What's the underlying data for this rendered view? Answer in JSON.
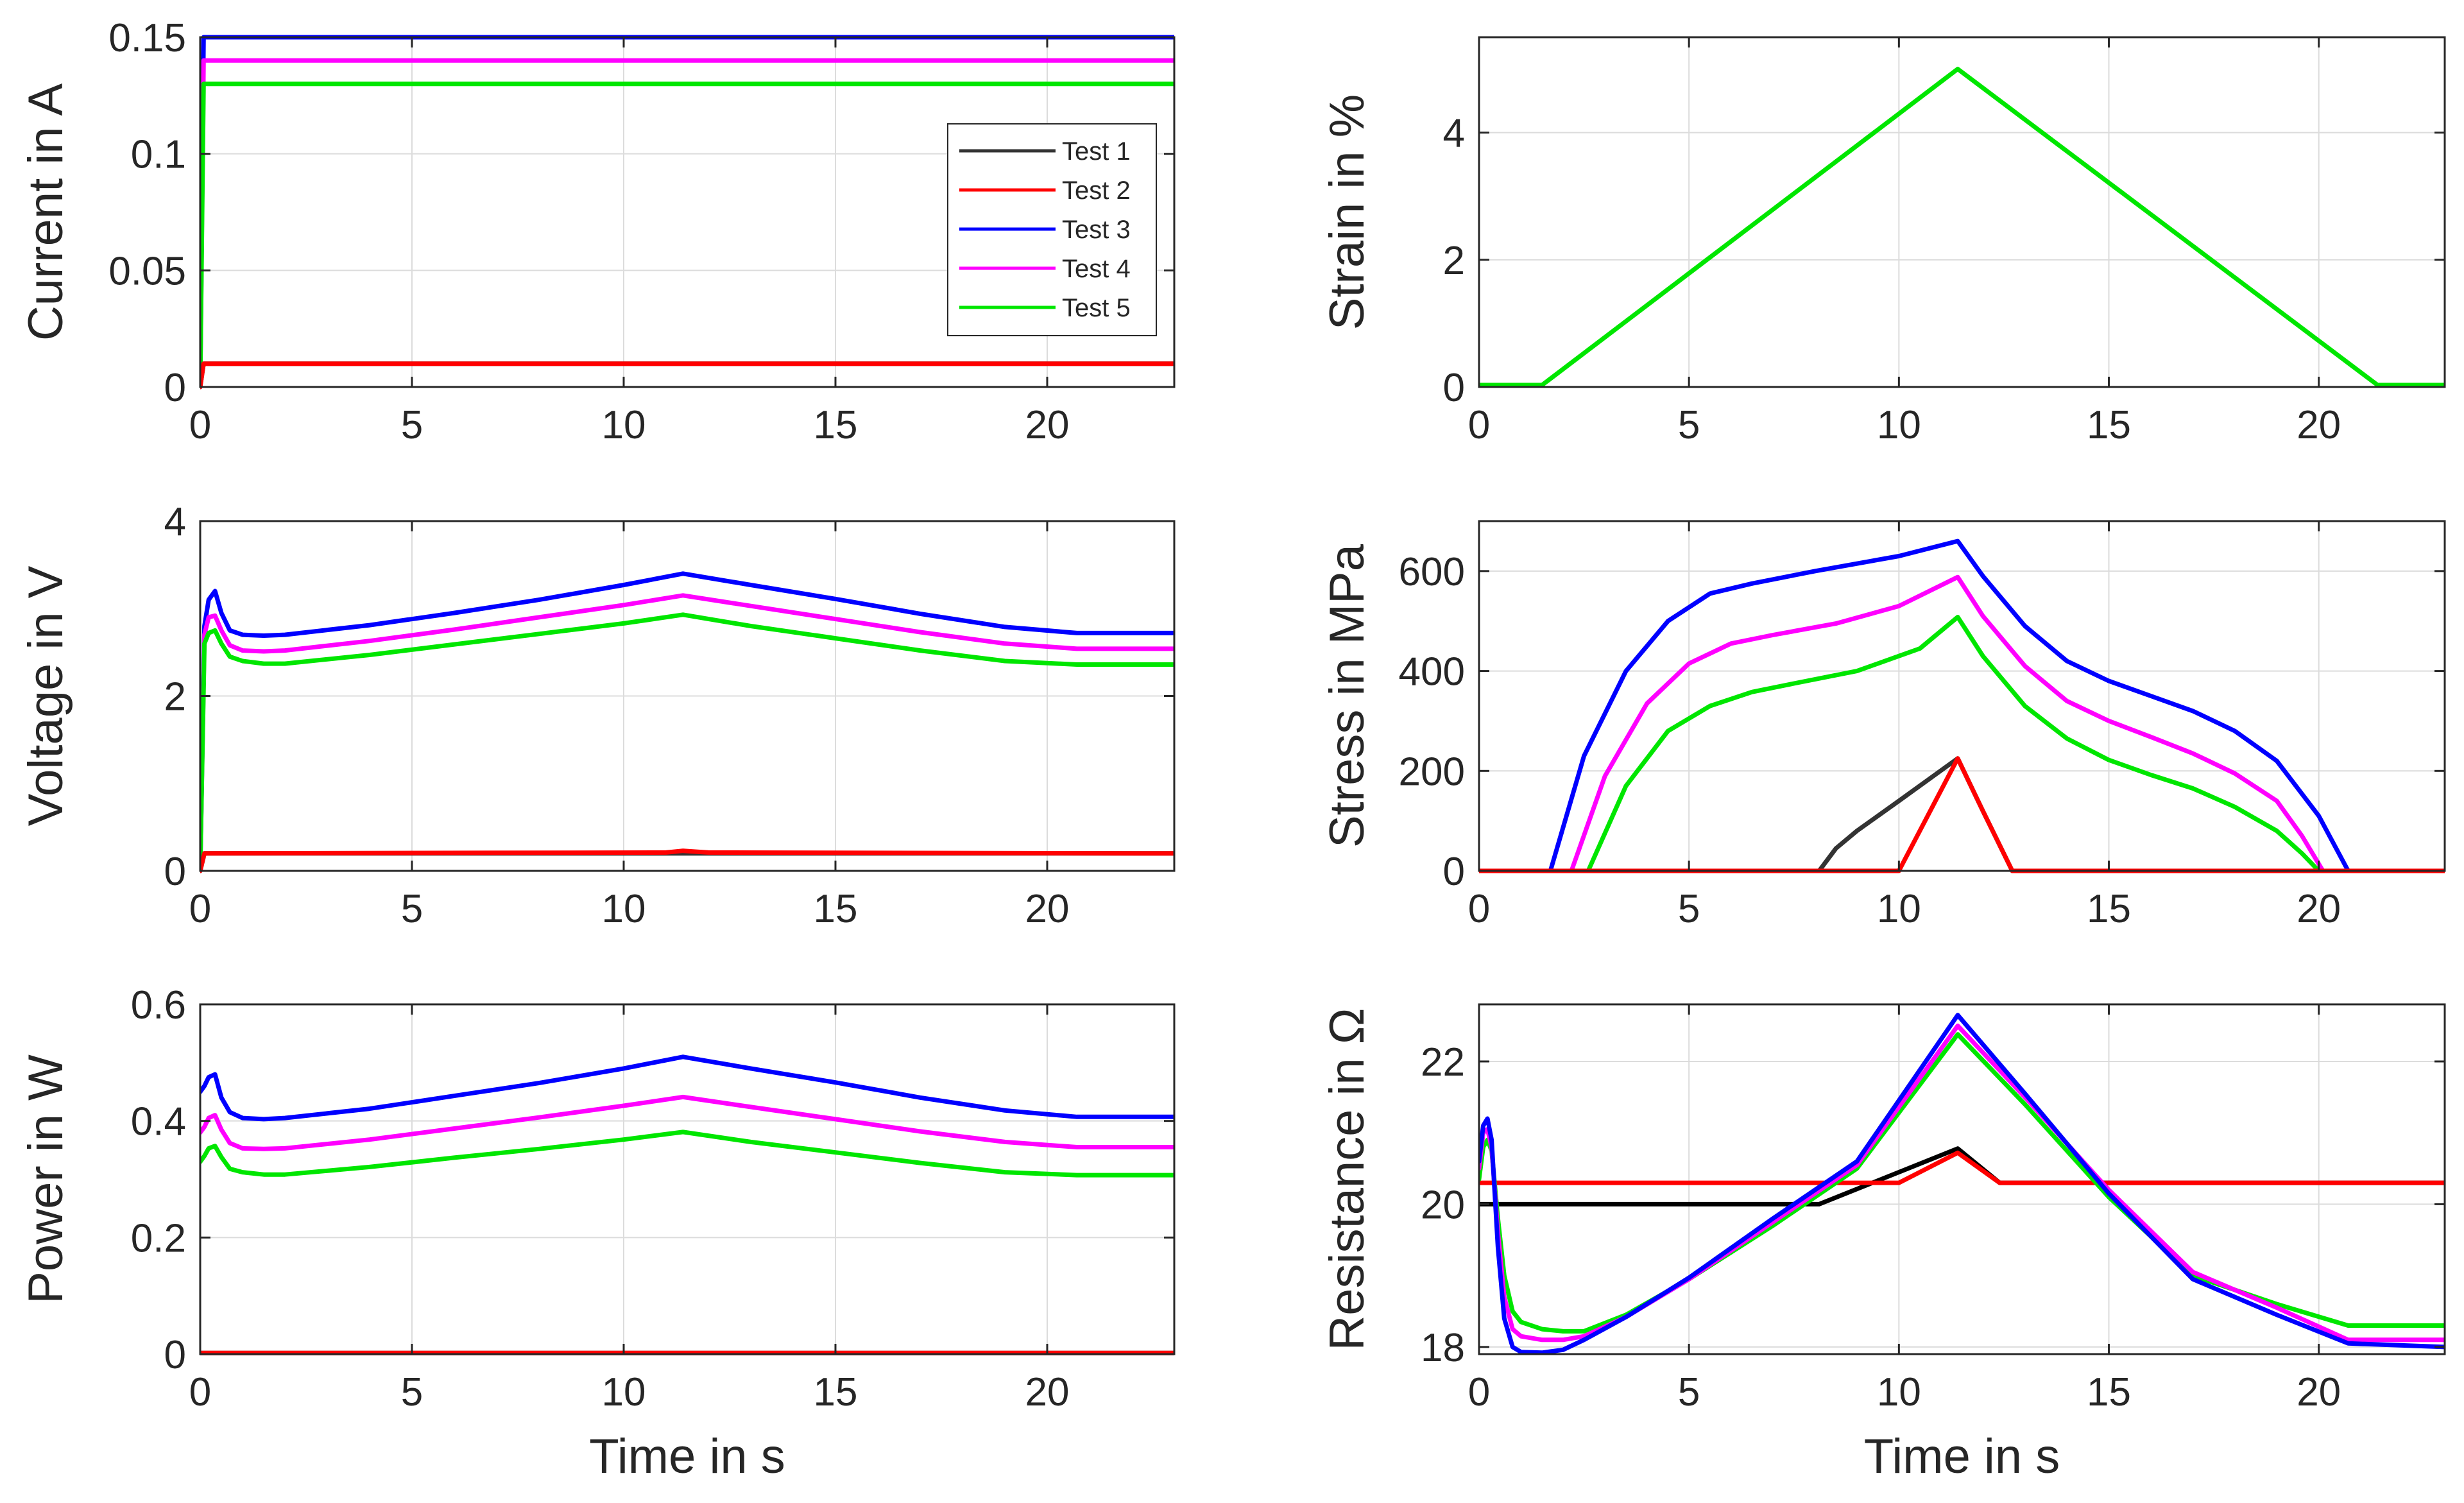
{
  "chart_data": [
    {
      "id": "current",
      "type": "line",
      "xlabel": "",
      "ylabel": "Current in A",
      "xlim": [
        0,
        23
      ],
      "ylim": [
        0,
        0.15
      ],
      "xticks": [
        0,
        5,
        10,
        15,
        20
      ],
      "xtick_labels": [
        "0",
        "5",
        "10",
        "15",
        "20"
      ],
      "yticks": [
        0,
        0.05,
        0.1,
        0.15
      ],
      "ytick_labels": [
        "0",
        "0.05",
        "0.1",
        "0.15"
      ],
      "series": [
        {
          "name": "Test 1",
          "color": "#333333",
          "x": [
            0,
            0.08,
            23
          ],
          "y": [
            0,
            0.01,
            0.01
          ]
        },
        {
          "name": "Test 3",
          "color": "#0000ff",
          "x": [
            0,
            0.08,
            23
          ],
          "y": [
            0,
            0.15,
            0.15
          ]
        },
        {
          "name": "Test 4",
          "color": "#ff00ff",
          "x": [
            0,
            0.08,
            23
          ],
          "y": [
            0,
            0.14,
            0.14
          ]
        },
        {
          "name": "Test 5",
          "color": "#00e600",
          "x": [
            0,
            0.08,
            23
          ],
          "y": [
            0,
            0.13,
            0.13
          ]
        },
        {
          "name": "Test 2",
          "color": "#ff0000",
          "x": [
            0,
            0.08,
            23
          ],
          "y": [
            0,
            0.01,
            0.01
          ]
        }
      ],
      "legend": {
        "position": "right",
        "entries": [
          {
            "label": "Test 1",
            "color": "#333333"
          },
          {
            "label": "Test 2",
            "color": "#ff0000"
          },
          {
            "label": "Test 3",
            "color": "#0000ff"
          },
          {
            "label": "Test 4",
            "color": "#ff00ff"
          },
          {
            "label": "Test 5",
            "color": "#00e600"
          }
        ]
      }
    },
    {
      "id": "strain",
      "type": "line",
      "xlabel": "",
      "ylabel": "Strain in %",
      "xlim": [
        0,
        23
      ],
      "ylim": [
        0,
        5.5
      ],
      "xticks": [
        0,
        5,
        10,
        15,
        20
      ],
      "xtick_labels": [
        "0",
        "5",
        "10",
        "15",
        "20"
      ],
      "yticks": [
        0,
        2,
        4
      ],
      "ytick_labels": [
        "0",
        "2",
        "4"
      ],
      "series": [
        {
          "name": "Test 5",
          "color": "#00e600",
          "x": [
            0,
            1.5,
            11.4,
            21.4,
            23
          ],
          "y": [
            0.03,
            0.03,
            5.0,
            0.03,
            0.03
          ]
        }
      ]
    },
    {
      "id": "voltage",
      "type": "line",
      "xlabel": "",
      "ylabel": "Voltage in V",
      "xlim": [
        0,
        23
      ],
      "ylim": [
        0,
        4
      ],
      "xticks": [
        0,
        5,
        10,
        15,
        20
      ],
      "xtick_labels": [
        "0",
        "5",
        "10",
        "15",
        "20"
      ],
      "yticks": [
        0,
        2,
        4
      ],
      "ytick_labels": [
        "0",
        "2",
        "4"
      ],
      "series": [
        {
          "name": "Test 3",
          "color": "#0000ff",
          "x": [
            0,
            0.1,
            0.2,
            0.35,
            0.5,
            0.7,
            1.0,
            1.5,
            2.0,
            4,
            6,
            8,
            10,
            11.4,
            13,
            15,
            17,
            19,
            20.7,
            23
          ],
          "y": [
            0,
            2.8,
            3.1,
            3.2,
            2.95,
            2.75,
            2.7,
            2.69,
            2.7,
            2.81,
            2.95,
            3.1,
            3.27,
            3.4,
            3.27,
            3.11,
            2.94,
            2.79,
            2.72,
            2.72
          ]
        },
        {
          "name": "Test 4",
          "color": "#ff00ff",
          "x": [
            0,
            0.1,
            0.2,
            0.35,
            0.5,
            0.7,
            1.0,
            1.5,
            2.0,
            4,
            6,
            8,
            10,
            11.4,
            13,
            15,
            17,
            19,
            20.7,
            23
          ],
          "y": [
            0,
            2.7,
            2.9,
            2.92,
            2.75,
            2.58,
            2.52,
            2.51,
            2.52,
            2.63,
            2.76,
            2.9,
            3.04,
            3.15,
            3.03,
            2.88,
            2.73,
            2.6,
            2.54,
            2.54
          ]
        },
        {
          "name": "Test 5",
          "color": "#00e600",
          "x": [
            0,
            0.1,
            0.2,
            0.35,
            0.5,
            0.7,
            1.0,
            1.5,
            2.0,
            4,
            6,
            8,
            10,
            11.4,
            13,
            15,
            17,
            19,
            20.7,
            23
          ],
          "y": [
            0,
            2.6,
            2.72,
            2.75,
            2.6,
            2.45,
            2.4,
            2.37,
            2.37,
            2.47,
            2.59,
            2.71,
            2.83,
            2.93,
            2.8,
            2.66,
            2.52,
            2.4,
            2.36,
            2.36
          ]
        },
        {
          "name": "Test 1",
          "color": "#333333",
          "x": [
            0,
            0.1,
            23
          ],
          "y": [
            0,
            0.2,
            0.2
          ]
        },
        {
          "name": "Test 2",
          "color": "#ff0000",
          "x": [
            0,
            0.1,
            11,
            11.4,
            12,
            23
          ],
          "y": [
            0,
            0.2,
            0.21,
            0.23,
            0.21,
            0.2
          ]
        }
      ]
    },
    {
      "id": "stress",
      "type": "line",
      "xlabel": "",
      "ylabel": "Stress in MPa",
      "xlim": [
        0,
        23
      ],
      "ylim": [
        0,
        700
      ],
      "xticks": [
        0,
        5,
        10,
        15,
        20
      ],
      "xtick_labels": [
        "0",
        "5",
        "10",
        "15",
        "20"
      ],
      "yticks": [
        0,
        200,
        400,
        600
      ],
      "ytick_labels": [
        "0",
        "200",
        "400",
        "600"
      ],
      "series": [
        {
          "name": "Test 3",
          "color": "#0000ff",
          "x": [
            0,
            1.7,
            2.5,
            3.5,
            4.5,
            5.5,
            6.5,
            8,
            10,
            11.4,
            12,
            13,
            14,
            15,
            16,
            17,
            18,
            19,
            20,
            20.7,
            23
          ],
          "y": [
            0,
            0,
            230,
            400,
            500,
            555,
            575,
            600,
            630,
            660,
            590,
            490,
            420,
            380,
            350,
            320,
            280,
            220,
            110,
            0,
            0
          ]
        },
        {
          "name": "Test 4",
          "color": "#ff00ff",
          "x": [
            0,
            2.2,
            3,
            4,
            5,
            6,
            7,
            8.5,
            10,
            11.4,
            12,
            13,
            14,
            15,
            16,
            17,
            18,
            19,
            19.6,
            20.1,
            23
          ],
          "y": [
            0,
            0,
            190,
            335,
            415,
            455,
            472,
            495,
            530,
            588,
            510,
            410,
            340,
            300,
            268,
            235,
            195,
            140,
            70,
            0,
            0
          ]
        },
        {
          "name": "Test 5",
          "color": "#00e600",
          "x": [
            0,
            2.6,
            3.5,
            4.5,
            5.5,
            6.5,
            7.5,
            9,
            10.5,
            11.4,
            12,
            13,
            14,
            15,
            16,
            17,
            18,
            19,
            19.6,
            20,
            23
          ],
          "y": [
            0,
            0,
            170,
            280,
            330,
            358,
            375,
            400,
            445,
            508,
            430,
            330,
            265,
            222,
            192,
            165,
            128,
            80,
            35,
            0,
            0
          ]
        },
        {
          "name": "Test 1",
          "color": "#333333",
          "x": [
            0,
            8.1,
            8.5,
            9,
            10,
            11.4,
            12,
            12.7,
            23
          ],
          "y": [
            0,
            0,
            45,
            80,
            140,
            225,
            120,
            0,
            0
          ]
        },
        {
          "name": "Test 2",
          "color": "#ff0000",
          "x": [
            0,
            10,
            11.4,
            12,
            12.7,
            23
          ],
          "y": [
            0,
            0,
            225,
            120,
            0,
            0
          ]
        }
      ]
    },
    {
      "id": "power",
      "type": "line",
      "xlabel": "Time in s",
      "ylabel": "Power in W",
      "xlim": [
        0,
        23
      ],
      "ylim": [
        0,
        0.6
      ],
      "xticks": [
        0,
        5,
        10,
        15,
        20
      ],
      "xtick_labels": [
        "0",
        "5",
        "10",
        "15",
        "20"
      ],
      "yticks": [
        0,
        0.2,
        0.4,
        0.6
      ],
      "ytick_labels": [
        "0",
        "0.2",
        "0.4",
        "0.6"
      ],
      "series": [
        {
          "name": "Test 3",
          "color": "#0000ff",
          "x": [
            0,
            0.1,
            0.2,
            0.35,
            0.5,
            0.7,
            1.0,
            1.5,
            2.0,
            4,
            6,
            8,
            10,
            11.4,
            13,
            15,
            17,
            19,
            20.7,
            23
          ],
          "y": [
            0.45,
            0.46,
            0.475,
            0.48,
            0.44,
            0.415,
            0.405,
            0.403,
            0.405,
            0.421,
            0.443,
            0.465,
            0.49,
            0.51,
            0.49,
            0.466,
            0.44,
            0.418,
            0.407,
            0.407
          ]
        },
        {
          "name": "Test 4",
          "color": "#ff00ff",
          "x": [
            0,
            0.1,
            0.2,
            0.35,
            0.5,
            0.7,
            1.0,
            1.5,
            2.0,
            4,
            6,
            8,
            10,
            11.4,
            13,
            15,
            17,
            19,
            20.7,
            23
          ],
          "y": [
            0.38,
            0.39,
            0.405,
            0.41,
            0.385,
            0.362,
            0.353,
            0.352,
            0.353,
            0.368,
            0.387,
            0.406,
            0.426,
            0.441,
            0.424,
            0.403,
            0.382,
            0.364,
            0.355,
            0.355
          ]
        },
        {
          "name": "Test 5",
          "color": "#00e600",
          "x": [
            0,
            0.1,
            0.2,
            0.35,
            0.5,
            0.7,
            1.0,
            1.5,
            2.0,
            4,
            6,
            8,
            10,
            11.4,
            13,
            15,
            17,
            19,
            20.7,
            23
          ],
          "y": [
            0.33,
            0.34,
            0.353,
            0.357,
            0.338,
            0.318,
            0.312,
            0.308,
            0.308,
            0.321,
            0.337,
            0.352,
            0.368,
            0.381,
            0.364,
            0.346,
            0.328,
            0.312,
            0.307,
            0.307
          ]
        },
        {
          "name": "Test 1",
          "color": "#333333",
          "x": [
            0,
            23
          ],
          "y": [
            0.002,
            0.002
          ]
        },
        {
          "name": "Test 2",
          "color": "#ff0000",
          "x": [
            0,
            23
          ],
          "y": [
            0.002,
            0.002
          ]
        }
      ]
    },
    {
      "id": "resistance",
      "type": "line",
      "xlabel": "Time in s",
      "ylabel": "Resistance in Ω",
      "xlim": [
        0,
        23
      ],
      "ylim": [
        17.9,
        22.8
      ],
      "xticks": [
        0,
        5,
        10,
        15,
        20
      ],
      "xtick_labels": [
        "0",
        "5",
        "10",
        "15",
        "20"
      ],
      "yticks": [
        18,
        20,
        22
      ],
      "ytick_labels": [
        "18",
        "20",
        "22"
      ],
      "series": [
        {
          "name": "Test 1",
          "color": "#000000",
          "x": [
            0,
            8.1,
            11.4,
            12.4,
            23
          ],
          "y": [
            20.0,
            20.0,
            20.78,
            20.3,
            20.3
          ]
        },
        {
          "name": "Test 2",
          "color": "#ff0000",
          "x": [
            0,
            10,
            11.4,
            12.4,
            23
          ],
          "y": [
            20.3,
            20.3,
            20.72,
            20.3,
            20.3
          ]
        },
        {
          "name": "Test 5",
          "color": "#00e600",
          "x": [
            0,
            0.1,
            0.2,
            0.3,
            0.45,
            0.6,
            0.8,
            1.0,
            1.5,
            2.0,
            2.5,
            3.5,
            5,
            7,
            9,
            11.4,
            13,
            15,
            17,
            19,
            20.7,
            23
          ],
          "y": [
            20.35,
            20.8,
            20.9,
            20.75,
            19.8,
            19.0,
            18.5,
            18.35,
            18.25,
            18.22,
            18.22,
            18.45,
            18.95,
            19.7,
            20.5,
            22.38,
            21.4,
            20.1,
            19.0,
            18.6,
            18.3,
            18.3
          ]
        },
        {
          "name": "Test 4",
          "color": "#ff00ff",
          "x": [
            0,
            0.1,
            0.2,
            0.3,
            0.45,
            0.6,
            0.8,
            1.0,
            1.5,
            2.0,
            2.5,
            3.5,
            5,
            7,
            9,
            11.4,
            13,
            15,
            17,
            19,
            20.7,
            23
          ],
          "y": [
            20.5,
            21.0,
            21.05,
            20.8,
            19.6,
            18.7,
            18.25,
            18.15,
            18.1,
            18.1,
            18.15,
            18.42,
            18.95,
            19.75,
            20.55,
            22.5,
            21.5,
            20.2,
            19.05,
            18.55,
            18.1,
            18.1
          ]
        },
        {
          "name": "Test 3",
          "color": "#0000ff",
          "x": [
            0,
            0.1,
            0.2,
            0.3,
            0.45,
            0.6,
            0.8,
            1.0,
            1.5,
            2.0,
            2.5,
            3.5,
            5,
            7,
            9,
            11.4,
            13,
            15,
            17,
            19,
            20.7,
            23
          ],
          "y": [
            20.6,
            21.1,
            21.2,
            20.9,
            19.4,
            18.4,
            18.0,
            17.93,
            17.92,
            17.96,
            18.1,
            18.42,
            18.97,
            19.8,
            20.6,
            22.65,
            21.55,
            20.15,
            18.95,
            18.45,
            18.05,
            18.0
          ]
        }
      ]
    }
  ]
}
